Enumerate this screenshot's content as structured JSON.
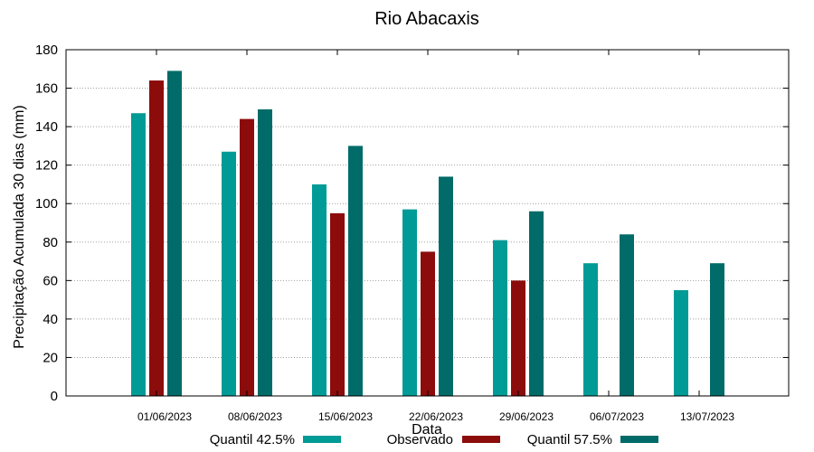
{
  "chart_data": {
    "type": "bar",
    "title": "Rio Abacaxis",
    "xlabel": "Data",
    "ylabel": "Precipitação Acumulada 30 dias (mm)",
    "ylim": [
      0,
      180
    ],
    "yticks": [
      0,
      20,
      40,
      60,
      80,
      100,
      120,
      140,
      160,
      180
    ],
    "grid": true,
    "legend_position": "bottom",
    "categories": [
      "01/06/2023",
      "08/06/2023",
      "15/06/2023",
      "22/06/2023",
      "29/06/2023",
      "06/07/2023",
      "13/07/2023"
    ],
    "series": [
      {
        "name": "Quantil 42.5%",
        "color": "#009b96",
        "values": [
          147,
          127,
          110,
          97,
          81,
          69,
          55
        ]
      },
      {
        "name": "Observado",
        "color": "#8c0c0c",
        "values": [
          164,
          144,
          95,
          75,
          60,
          null,
          null
        ]
      },
      {
        "name": "Quantil 57.5%",
        "color": "#006b68",
        "values": [
          169,
          149,
          130,
          114,
          96,
          84,
          69
        ]
      }
    ]
  }
}
